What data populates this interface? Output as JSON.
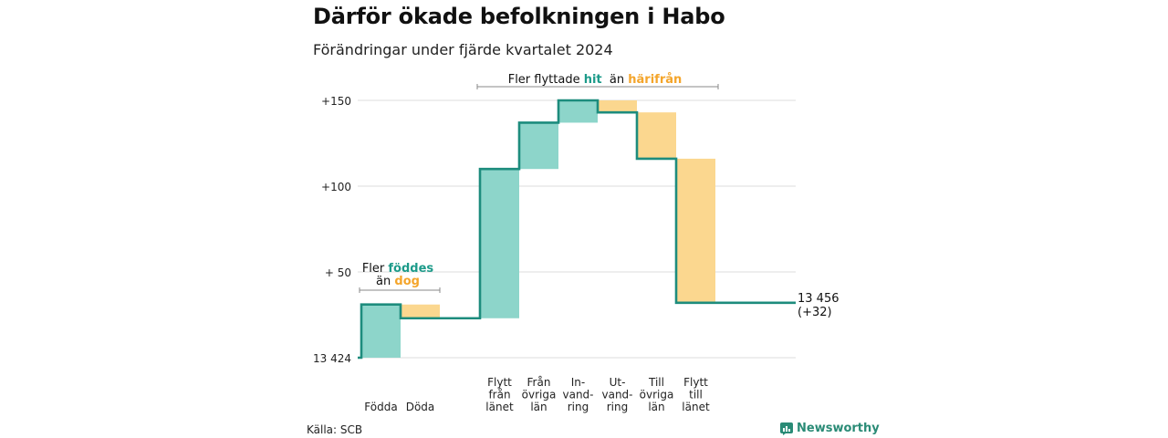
{
  "title": "Därför ökade befolkningen i Habo",
  "subtitle": "Förändringar under fjärde kvartalet 2024",
  "source": "Källa: SCB",
  "brand": "Newsworthy",
  "colors": {
    "positive": "#8dd5ca",
    "negative": "#fbd78f",
    "line": "#1d8c7d",
    "pos_text": "#1d9b8a",
    "neg_text": "#f4a52b",
    "grid": "#dddddd"
  },
  "chart_data": {
    "type": "waterfall",
    "start_label": "13 424",
    "end_label": "13 456",
    "end_change": "(+32)",
    "y_ticks": [
      {
        "value": 0,
        "label": "13 424"
      },
      {
        "value": 50,
        "label": "+ 50"
      },
      {
        "value": 100,
        "label": "+100"
      },
      {
        "value": 150,
        "label": "+150"
      }
    ],
    "ylim": [
      0,
      160
    ],
    "steps": [
      {
        "label_lines": [
          "Födda"
        ],
        "value": 31
      },
      {
        "label_lines": [
          "Döda"
        ],
        "value": -8
      },
      {
        "label_lines": [
          "Flytt",
          "från",
          "länet"
        ],
        "value": 87
      },
      {
        "label_lines": [
          "Från",
          "övriga",
          "län"
        ],
        "value": 27
      },
      {
        "label_lines": [
          "In-",
          "vand-",
          "ring"
        ],
        "value": 13
      },
      {
        "label_lines": [
          "Ut-",
          "vand-",
          "ring"
        ],
        "value": -7
      },
      {
        "label_lines": [
          "Till",
          "övriga",
          "län"
        ],
        "value": -27
      },
      {
        "label_lines": [
          "Flytt",
          "till",
          "länet"
        ],
        "value": -84
      }
    ],
    "annotations": [
      {
        "parts": [
          [
            "Fler ",
            "plain"
          ],
          [
            "föddes",
            "pos"
          ]
        ],
        "parts2": [
          [
            "än ",
            "plain"
          ],
          [
            "dog",
            "neg"
          ]
        ]
      },
      {
        "parts": [
          [
            "Fler flyttade ",
            "plain"
          ],
          [
            "hit",
            "pos"
          ],
          [
            "  än ",
            "plain"
          ],
          [
            "härifrån",
            "neg"
          ]
        ]
      }
    ]
  }
}
